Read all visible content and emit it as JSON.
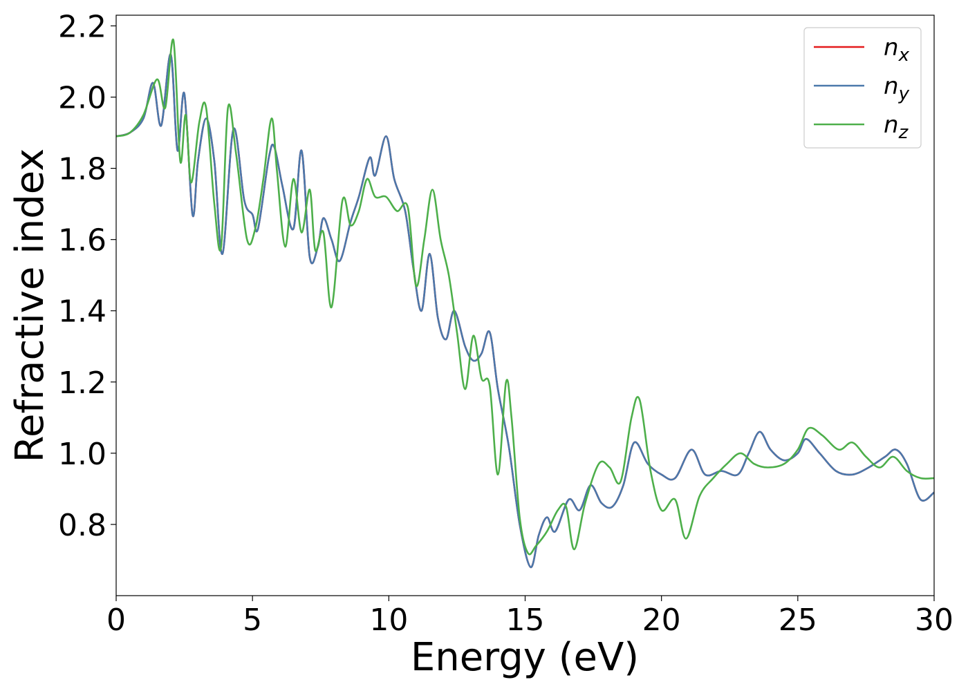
{
  "chart_data": {
    "type": "line",
    "title": "",
    "xlabel": "Energy (eV)",
    "ylabel": "Refractive index",
    "xlim": [
      0,
      30
    ],
    "ylim": [
      0.6,
      2.23
    ],
    "xticks": [
      0,
      5,
      10,
      15,
      20,
      25,
      30
    ],
    "xtick_labels": [
      "0",
      "5",
      "10",
      "15",
      "20",
      "25",
      "30"
    ],
    "yticks": [
      0.8,
      1.0,
      1.2,
      1.4,
      1.6,
      1.8,
      2.0,
      2.2
    ],
    "ytick_labels": [
      "0.8",
      "1.0",
      "1.2",
      "1.4",
      "1.6",
      "1.8",
      "2.0",
      "2.2"
    ],
    "grid": false,
    "legend_position": "top-right",
    "series": [
      {
        "name": "n",
        "subscript": "x",
        "color": "#e41a1c",
        "x": [
          0,
          0.5,
          1,
          1.35,
          1.65,
          2.0,
          2.25,
          2.5,
          2.8,
          3.0,
          3.3,
          3.6,
          3.9,
          4.3,
          4.7,
          5.0,
          5.2,
          5.6,
          5.8,
          6.1,
          6.5,
          6.8,
          7.1,
          7.4,
          7.6,
          7.9,
          8.2,
          8.6,
          8.9,
          9.3,
          9.5,
          9.9,
          10.2,
          10.6,
          10.9,
          11.2,
          11.5,
          11.8,
          12.1,
          12.4,
          12.8,
          13.1,
          13.4,
          13.7,
          14.0,
          14.4,
          14.8,
          15.2,
          15.5,
          15.8,
          16.1,
          16.6,
          17.0,
          17.4,
          17.8,
          18.2,
          18.6,
          19.0,
          19.5,
          20.0,
          20.5,
          21.1,
          21.6,
          22.2,
          22.8,
          23.2,
          23.6,
          24.0,
          24.5,
          25.0,
          25.3,
          25.8,
          26.4,
          27.0,
          27.6,
          28.2,
          28.6,
          29.0,
          29.5,
          30.0
        ],
        "y": [
          1.89,
          1.9,
          1.94,
          2.04,
          1.92,
          2.12,
          1.85,
          2.01,
          1.67,
          1.82,
          1.94,
          1.82,
          1.56,
          1.91,
          1.71,
          1.67,
          1.63,
          1.83,
          1.86,
          1.75,
          1.63,
          1.85,
          1.55,
          1.58,
          1.66,
          1.6,
          1.54,
          1.65,
          1.72,
          1.83,
          1.78,
          1.89,
          1.77,
          1.68,
          1.52,
          1.4,
          1.56,
          1.38,
          1.32,
          1.4,
          1.3,
          1.26,
          1.28,
          1.34,
          1.18,
          1.02,
          0.8,
          0.68,
          0.77,
          0.82,
          0.78,
          0.87,
          0.84,
          0.91,
          0.86,
          0.85,
          0.91,
          1.03,
          0.97,
          0.94,
          0.93,
          1.01,
          0.94,
          0.95,
          0.94,
          1.0,
          1.06,
          1.01,
          0.98,
          1.0,
          1.04,
          1.0,
          0.95,
          0.94,
          0.96,
          0.99,
          1.01,
          0.97,
          0.87,
          0.89
        ]
      },
      {
        "name": "n",
        "subscript": "y",
        "color": "#4a78ab",
        "x": [
          0,
          0.5,
          1,
          1.35,
          1.65,
          2.0,
          2.25,
          2.5,
          2.8,
          3.0,
          3.3,
          3.6,
          3.9,
          4.3,
          4.7,
          5.0,
          5.2,
          5.6,
          5.8,
          6.1,
          6.5,
          6.8,
          7.1,
          7.4,
          7.6,
          7.9,
          8.2,
          8.6,
          8.9,
          9.3,
          9.5,
          9.9,
          10.2,
          10.6,
          10.9,
          11.2,
          11.5,
          11.8,
          12.1,
          12.4,
          12.8,
          13.1,
          13.4,
          13.7,
          14.0,
          14.4,
          14.8,
          15.2,
          15.5,
          15.8,
          16.1,
          16.6,
          17.0,
          17.4,
          17.8,
          18.2,
          18.6,
          19.0,
          19.5,
          20.0,
          20.5,
          21.1,
          21.6,
          22.2,
          22.8,
          23.2,
          23.6,
          24.0,
          24.5,
          25.0,
          25.3,
          25.8,
          26.4,
          27.0,
          27.6,
          28.2,
          28.6,
          29.0,
          29.5,
          30.0
        ],
        "y": [
          1.89,
          1.9,
          1.94,
          2.04,
          1.92,
          2.12,
          1.85,
          2.01,
          1.67,
          1.82,
          1.94,
          1.82,
          1.56,
          1.91,
          1.71,
          1.67,
          1.63,
          1.83,
          1.86,
          1.75,
          1.63,
          1.85,
          1.55,
          1.58,
          1.66,
          1.6,
          1.54,
          1.65,
          1.72,
          1.83,
          1.78,
          1.89,
          1.77,
          1.68,
          1.52,
          1.4,
          1.56,
          1.38,
          1.32,
          1.4,
          1.3,
          1.26,
          1.28,
          1.34,
          1.18,
          1.02,
          0.8,
          0.68,
          0.77,
          0.82,
          0.78,
          0.87,
          0.84,
          0.91,
          0.86,
          0.85,
          0.91,
          1.03,
          0.97,
          0.94,
          0.93,
          1.01,
          0.94,
          0.95,
          0.94,
          1.0,
          1.06,
          1.01,
          0.98,
          1.0,
          1.04,
          1.0,
          0.95,
          0.94,
          0.96,
          0.99,
          1.01,
          0.97,
          0.87,
          0.89
        ]
      },
      {
        "name": "n",
        "subscript": "z",
        "color": "#4daf4a",
        "x": [
          0,
          0.5,
          1,
          1.5,
          1.8,
          2.1,
          2.35,
          2.55,
          2.75,
          3.05,
          3.3,
          3.6,
          3.85,
          4.1,
          4.4,
          4.8,
          5.1,
          5.4,
          5.7,
          5.9,
          6.2,
          6.5,
          6.8,
          7.1,
          7.3,
          7.6,
          7.9,
          8.3,
          8.6,
          8.9,
          9.2,
          9.5,
          9.9,
          10.3,
          10.7,
          11.0,
          11.3,
          11.6,
          11.9,
          12.2,
          12.5,
          12.8,
          13.1,
          13.4,
          13.7,
          14.0,
          14.3,
          14.5,
          14.8,
          15.1,
          15.4,
          15.8,
          16.2,
          16.5,
          16.8,
          17.2,
          17.7,
          18.1,
          18.5,
          18.9,
          19.2,
          19.6,
          20.0,
          20.5,
          20.9,
          21.4,
          21.9,
          22.4,
          22.9,
          23.4,
          23.9,
          24.5,
          25.0,
          25.4,
          25.9,
          26.5,
          27.0,
          27.5,
          28.0,
          28.5,
          29.0,
          29.5,
          30.0
        ],
        "y": [
          1.89,
          1.9,
          1.95,
          2.05,
          1.97,
          2.16,
          1.82,
          1.95,
          1.76,
          1.93,
          1.97,
          1.7,
          1.58,
          1.97,
          1.84,
          1.6,
          1.63,
          1.77,
          1.94,
          1.79,
          1.58,
          1.77,
          1.62,
          1.74,
          1.57,
          1.62,
          1.41,
          1.71,
          1.64,
          1.68,
          1.77,
          1.72,
          1.72,
          1.68,
          1.69,
          1.47,
          1.6,
          1.74,
          1.6,
          1.5,
          1.34,
          1.18,
          1.33,
          1.21,
          1.19,
          0.94,
          1.2,
          1.1,
          0.82,
          0.72,
          0.74,
          0.78,
          0.84,
          0.85,
          0.73,
          0.86,
          0.97,
          0.96,
          0.92,
          1.1,
          1.15,
          0.95,
          0.84,
          0.87,
          0.76,
          0.88,
          0.93,
          0.97,
          1.0,
          0.97,
          0.96,
          0.97,
          1.01,
          1.07,
          1.05,
          1.01,
          1.03,
          0.99,
          0.96,
          0.99,
          0.95,
          0.93,
          0.93
        ]
      }
    ]
  }
}
